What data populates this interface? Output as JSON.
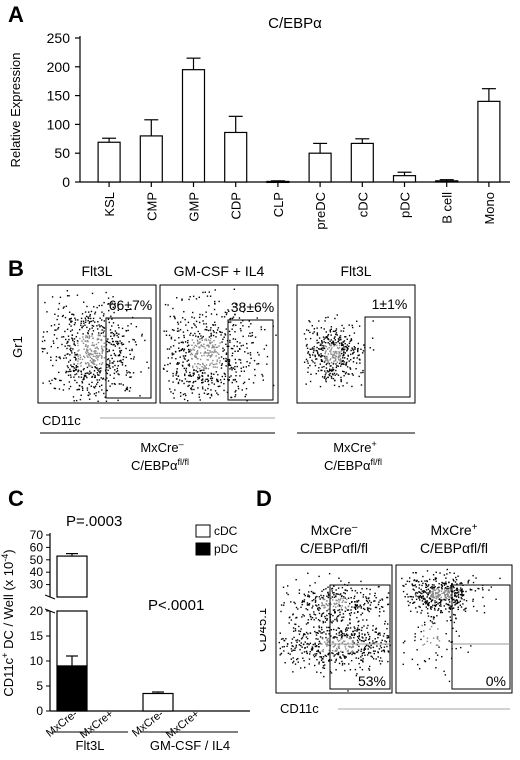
{
  "panels": {
    "A": {
      "letter": "A",
      "chart_data": {
        "type": "bar",
        "title": "C/EBPα",
        "ylabel": "Relative Expression",
        "ylim": [
          0,
          250
        ],
        "yticks": [
          0,
          50,
          100,
          150,
          200,
          250
        ],
        "categories": [
          "KSL",
          "CMP",
          "GMP",
          "CDP",
          "CLP",
          "preDC",
          "cDC",
          "pDC",
          "B cell",
          "Mono"
        ],
        "values": [
          69,
          80,
          195,
          86,
          1,
          50,
          67,
          11,
          2,
          140
        ],
        "errors": [
          7,
          28,
          20,
          28,
          1,
          17,
          8,
          6,
          2,
          22
        ]
      }
    },
    "B": {
      "letter": "B",
      "ylabel": "Gr1",
      "xlabel": "CD11c",
      "plots": [
        {
          "title": "Flt3L",
          "pct": "66±7%"
        },
        {
          "title": "GM-CSF + IL4",
          "pct": "38±6%"
        },
        {
          "title": "Flt3L",
          "pct": "1±1%"
        }
      ],
      "group_left_line1": "MxCre",
      "group_left_sup1": "–",
      "group_left_line2": "C/EBPα",
      "group_left_sup2": "fl/fl",
      "group_right_line1": "MxCre",
      "group_right_sup1": "+",
      "group_right_line2": "C/EBPα",
      "group_right_sup2": "fl/fl"
    },
    "C": {
      "letter": "C",
      "chart_data": {
        "type": "bar",
        "stacked": true,
        "broken_axis": true,
        "ylabel": "CD11c+ DC / Well (x 10-4)",
        "ylabel_main": "CD11c",
        "ylabel_sup": "+",
        "ylabel_mid": " DC / Well (x 10",
        "ylabel_exp": "-4",
        "ylabel_end": ")",
        "yticks": [
          0,
          5,
          10,
          15,
          20,
          30,
          40,
          50,
          60,
          70
        ],
        "categories": [
          "MxCre-",
          "MxCre+",
          "MxCre-",
          "MxCre+"
        ],
        "groups": [
          "Flt3L",
          "GM-CSF / IL4"
        ],
        "series": [
          {
            "name": "pDC",
            "values": [
              9,
              0,
              0,
              0
            ]
          },
          {
            "name": "cDC",
            "values": [
              44,
              0,
              3.5,
              0
            ]
          }
        ],
        "total_error": [
          2,
          0,
          0.3,
          0
        ],
        "pdc_error": [
          2,
          0,
          0,
          0
        ],
        "annotations": [
          "P=.0003",
          "P<.0001"
        ],
        "legend": [
          "cDC",
          "pDC"
        ]
      }
    },
    "D": {
      "letter": "D",
      "ylabel": "CD45.1",
      "xlabel": "CD11c",
      "plots": [
        {
          "title_line1": "MxCre",
          "sup1": "–",
          "title_line2": "C/EBPαfl/fl",
          "pct": "53%"
        },
        {
          "title_line1": "MxCre",
          "sup1": "+",
          "title_line2": "C/EBPαfl/fl",
          "pct": "0%"
        }
      ]
    }
  }
}
